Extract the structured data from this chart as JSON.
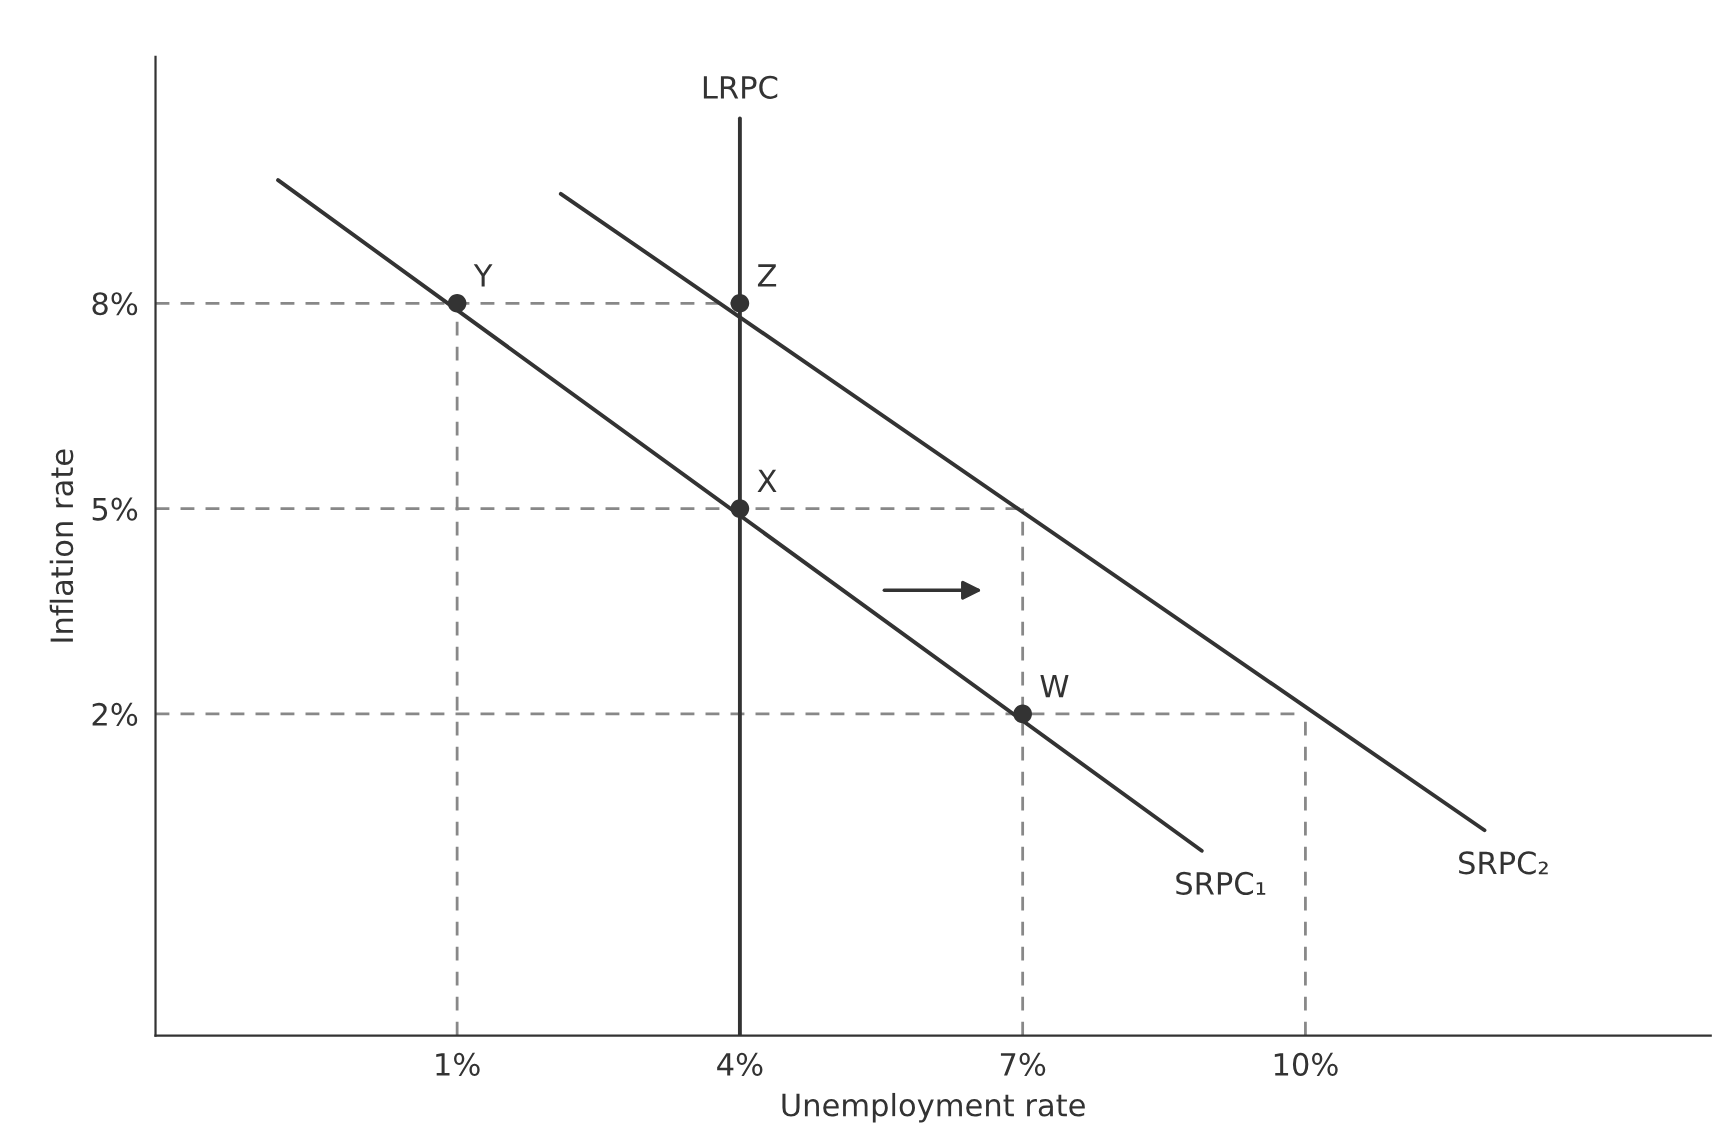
{
  "chart_data": {
    "type": "line",
    "xlabel": "Unemployment rate",
    "ylabel": "Inflation rate",
    "xlim": [
      -2.2,
      14.3
    ],
    "ylim": [
      -2.7,
      11.6
    ],
    "xticks": [
      {
        "value": 1,
        "label": "1%"
      },
      {
        "value": 4,
        "label": "4%"
      },
      {
        "value": 7,
        "label": "7%"
      },
      {
        "value": 10,
        "label": "10%"
      }
    ],
    "yticks": [
      {
        "value": 2,
        "label": "2%"
      },
      {
        "value": 5,
        "label": "5%"
      },
      {
        "value": 8,
        "label": "8%"
      }
    ],
    "grid": false,
    "legend": false,
    "series": [
      {
        "line_style": "dashed",
        "color": "#888888",
        "x": [
          -2.2,
          4
        ],
        "values": [
          8,
          8
        ]
      },
      {
        "line_style": "dashed",
        "color": "#888888",
        "x": [
          -2.2,
          7
        ],
        "values": [
          5,
          5
        ]
      },
      {
        "line_style": "dashed",
        "color": "#888888",
        "x": [
          -2.2,
          10
        ],
        "values": [
          2,
          2
        ]
      },
      {
        "line_style": "dashed",
        "color": "#888888",
        "x": [
          1,
          1
        ],
        "values": [
          -2.7,
          8
        ]
      },
      {
        "line_style": "dashed",
        "color": "#888888",
        "x": [
          7,
          7
        ],
        "values": [
          -2.7,
          5
        ]
      },
      {
        "line_style": "dashed",
        "color": "#888888",
        "x": [
          10,
          10
        ],
        "values": [
          -2.7,
          2
        ]
      },
      {
        "name": "LRPC",
        "line_style": "solid",
        "color": "#333333",
        "x": [
          4,
          4
        ],
        "values": [
          -2.7,
          10.7
        ]
      },
      {
        "name": "SRPC₁",
        "line_style": "solid",
        "color": "#333333",
        "x": [
          -0.9,
          8.9
        ],
        "values": [
          9.8,
          0
        ]
      },
      {
        "name": "SRPC₂",
        "line_style": "solid",
        "color": "#333333",
        "x": [
          2.1,
          11.9
        ],
        "values": [
          9.6,
          0.3
        ]
      },
      {
        "type": "scatter",
        "marker": "circle",
        "color": "#333333",
        "x": [
          1,
          4,
          4,
          7
        ],
        "values": [
          8,
          8,
          5,
          2
        ]
      }
    ],
    "annotations": [
      {
        "text": "Y",
        "x": 1,
        "y": 8
      },
      {
        "text": "Z",
        "x": 4,
        "y": 8
      },
      {
        "text": "X",
        "x": 4,
        "y": 5
      },
      {
        "text": "W",
        "x": 7,
        "y": 2
      }
    ]
  }
}
